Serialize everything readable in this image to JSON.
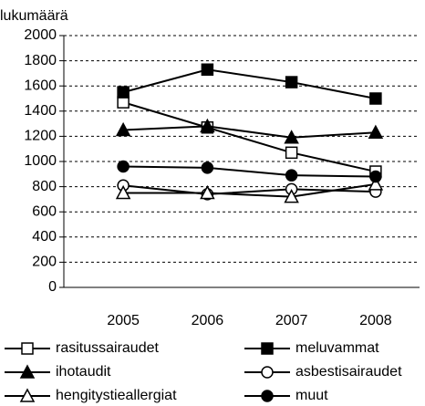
{
  "chart_data": {
    "type": "line",
    "y_label": "lukumäärä",
    "categories": [
      "2005",
      "2006",
      "2007",
      "2008"
    ],
    "series": [
      {
        "name": "rasitussairaudet",
        "color": "#000000",
        "marker": "square",
        "filled": false,
        "values": [
          1470,
          1270,
          1070,
          920
        ]
      },
      {
        "name": "meluvammat",
        "color": "#000000",
        "marker": "square",
        "filled": true,
        "values": [
          1550,
          1730,
          1630,
          1500
        ]
      },
      {
        "name": "ihotaudit",
        "color": "#000000",
        "marker": "triangle",
        "filled": true,
        "values": [
          1250,
          1280,
          1190,
          1230
        ]
      },
      {
        "name": "asbestisairaudet",
        "color": "#000000",
        "marker": "circle",
        "filled": false,
        "values": [
          810,
          740,
          780,
          760
        ]
      },
      {
        "name": "hengitystieallergiat",
        "color": "#000000",
        "marker": "triangle",
        "filled": false,
        "values": [
          750,
          750,
          720,
          820
        ]
      },
      {
        "name": "muut",
        "color": "#000000",
        "marker": "circle",
        "filled": true,
        "values": [
          960,
          950,
          890,
          880
        ]
      }
    ],
    "ylim": [
      0,
      2000
    ],
    "yticks": [
      0,
      200,
      400,
      600,
      800,
      1000,
      1200,
      1400,
      1600,
      1800,
      2000
    ],
    "grid": true,
    "legend": "bottom"
  }
}
